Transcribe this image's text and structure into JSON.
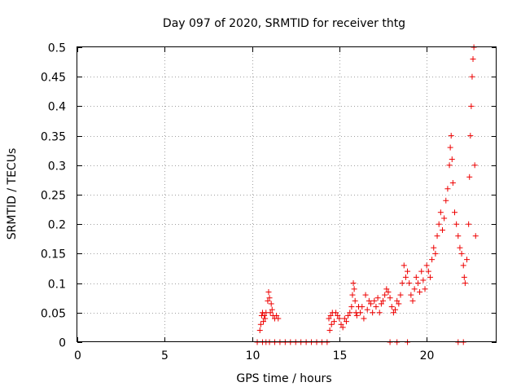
{
  "chart_data": {
    "type": "scatter",
    "title": "Day 097 of 2020, SRMTID for receiver thtg",
    "xlabel": "GPS time / hours",
    "ylabel": "SRMTID / TECUs",
    "xlim": [
      0,
      24
    ],
    "ylim": [
      0,
      0.5
    ],
    "x_ticks": [
      0,
      5,
      10,
      15,
      20
    ],
    "x_tick_labels": [
      "0",
      "5",
      "10",
      "15",
      "20"
    ],
    "y_ticks": [
      0,
      0.05,
      0.1,
      0.15,
      0.2,
      0.25,
      0.3,
      0.35,
      0.4,
      0.45,
      0.5
    ],
    "y_tick_labels": [
      "0",
      "0.05",
      "0.1",
      "0.15",
      "0.2",
      "0.25",
      "0.3",
      "0.35",
      "0.4",
      "0.45",
      "0.5"
    ],
    "grid": true,
    "marker": "+",
    "color": "#ee0000",
    "series": [
      {
        "name": "SRMTID",
        "points": [
          [
            10.3,
            0
          ],
          [
            10.6,
            0
          ],
          [
            10.8,
            0
          ],
          [
            11.0,
            0
          ],
          [
            11.3,
            0
          ],
          [
            11.6,
            0
          ],
          [
            11.9,
            0
          ],
          [
            12.2,
            0
          ],
          [
            12.5,
            0
          ],
          [
            12.8,
            0
          ],
          [
            13.1,
            0
          ],
          [
            13.4,
            0
          ],
          [
            13.7,
            0
          ],
          [
            14.0,
            0
          ],
          [
            14.3,
            0
          ],
          [
            17.9,
            0
          ],
          [
            18.3,
            0
          ],
          [
            18.9,
            0
          ],
          [
            21.8,
            0
          ],
          [
            22.1,
            0
          ],
          [
            10.45,
            0.02
          ],
          [
            10.5,
            0.03
          ],
          [
            10.55,
            0.045
          ],
          [
            10.6,
            0.05
          ],
          [
            10.65,
            0.035
          ],
          [
            10.7,
            0.045
          ],
          [
            10.75,
            0.04
          ],
          [
            10.8,
            0.05
          ],
          [
            10.9,
            0.07
          ],
          [
            10.95,
            0.085
          ],
          [
            11.0,
            0.075
          ],
          [
            11.05,
            0.05
          ],
          [
            11.1,
            0.065
          ],
          [
            11.15,
            0.055
          ],
          [
            11.2,
            0.045
          ],
          [
            11.3,
            0.04
          ],
          [
            11.4,
            0.045
          ],
          [
            11.5,
            0.04
          ],
          [
            14.4,
            0.04
          ],
          [
            14.45,
            0.02
          ],
          [
            14.5,
            0.045
          ],
          [
            14.55,
            0.03
          ],
          [
            14.6,
            0.05
          ],
          [
            14.7,
            0.035
          ],
          [
            14.8,
            0.05
          ],
          [
            14.9,
            0.045
          ],
          [
            15.0,
            0.04
          ],
          [
            15.1,
            0.03
          ],
          [
            15.2,
            0.025
          ],
          [
            15.3,
            0.04
          ],
          [
            15.4,
            0.035
          ],
          [
            15.5,
            0.045
          ],
          [
            15.6,
            0.05
          ],
          [
            15.7,
            0.06
          ],
          [
            15.75,
            0.08
          ],
          [
            15.8,
            0.1
          ],
          [
            15.85,
            0.09
          ],
          [
            15.9,
            0.07
          ],
          [
            15.95,
            0.05
          ],
          [
            16.0,
            0.045
          ],
          [
            16.1,
            0.06
          ],
          [
            16.2,
            0.05
          ],
          [
            16.3,
            0.06
          ],
          [
            16.4,
            0.04
          ],
          [
            16.5,
            0.08
          ],
          [
            16.6,
            0.055
          ],
          [
            16.7,
            0.07
          ],
          [
            16.8,
            0.065
          ],
          [
            16.9,
            0.05
          ],
          [
            17.0,
            0.07
          ],
          [
            17.1,
            0.06
          ],
          [
            17.2,
            0.075
          ],
          [
            17.3,
            0.05
          ],
          [
            17.4,
            0.065
          ],
          [
            17.5,
            0.07
          ],
          [
            17.6,
            0.08
          ],
          [
            17.7,
            0.09
          ],
          [
            17.8,
            0.085
          ],
          [
            17.9,
            0.075
          ],
          [
            18.0,
            0.06
          ],
          [
            18.1,
            0.05
          ],
          [
            18.2,
            0.055
          ],
          [
            18.3,
            0.07
          ],
          [
            18.4,
            0.065
          ],
          [
            18.5,
            0.08
          ],
          [
            18.6,
            0.1
          ],
          [
            18.7,
            0.13
          ],
          [
            18.8,
            0.11
          ],
          [
            18.9,
            0.12
          ],
          [
            19.0,
            0.1
          ],
          [
            19.1,
            0.08
          ],
          [
            19.2,
            0.07
          ],
          [
            19.3,
            0.09
          ],
          [
            19.4,
            0.11
          ],
          [
            19.5,
            0.1
          ],
          [
            19.6,
            0.085
          ],
          [
            19.7,
            0.12
          ],
          [
            19.8,
            0.105
          ],
          [
            19.9,
            0.09
          ],
          [
            20.0,
            0.13
          ],
          [
            20.1,
            0.12
          ],
          [
            20.2,
            0.11
          ],
          [
            20.3,
            0.14
          ],
          [
            20.4,
            0.16
          ],
          [
            20.5,
            0.15
          ],
          [
            20.6,
            0.18
          ],
          [
            20.7,
            0.2
          ],
          [
            20.8,
            0.22
          ],
          [
            20.9,
            0.19
          ],
          [
            21.0,
            0.21
          ],
          [
            21.1,
            0.24
          ],
          [
            21.2,
            0.26
          ],
          [
            21.3,
            0.3
          ],
          [
            21.35,
            0.33
          ],
          [
            21.4,
            0.35
          ],
          [
            21.45,
            0.31
          ],
          [
            21.5,
            0.27
          ],
          [
            21.6,
            0.22
          ],
          [
            21.7,
            0.2
          ],
          [
            21.8,
            0.18
          ],
          [
            21.9,
            0.16
          ],
          [
            22.0,
            0.15
          ],
          [
            22.1,
            0.13
          ],
          [
            22.15,
            0.11
          ],
          [
            22.2,
            0.1
          ],
          [
            22.3,
            0.14
          ],
          [
            22.4,
            0.2
          ],
          [
            22.45,
            0.28
          ],
          [
            22.5,
            0.35
          ],
          [
            22.55,
            0.4
          ],
          [
            22.6,
            0.45
          ],
          [
            22.65,
            0.48
          ],
          [
            22.7,
            0.5
          ],
          [
            22.75,
            0.3
          ],
          [
            22.8,
            0.18
          ]
        ]
      }
    ]
  }
}
